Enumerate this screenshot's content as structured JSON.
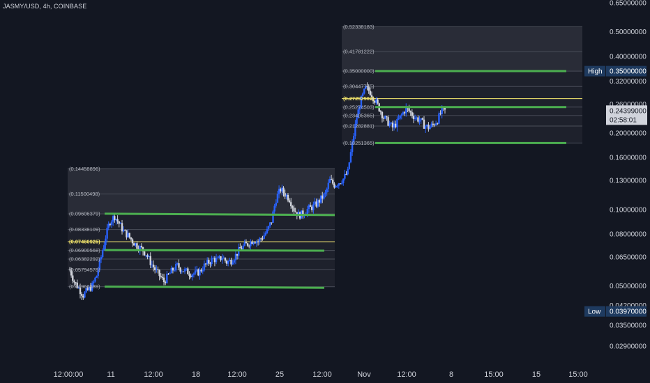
{
  "header": {
    "title": "JASMY/USD, 4h, COINBASE"
  },
  "price_scale": {
    "ticks": [
      "0.65000000",
      "0.50000000",
      "0.40000000",
      "0.32000000",
      "0.26000000",
      "0.20000000",
      "0.16000000",
      "0.13000000",
      "0.10000000",
      "0.08000000",
      "0.06500000",
      "0.05000000",
      "0.04200000",
      "0.03500000",
      "0.02900000"
    ],
    "high": {
      "label": "High",
      "value": "0.35000000"
    },
    "low": {
      "label": "Low",
      "value": "0.03970000"
    },
    "current": {
      "price": "0.24399000",
      "countdown": "02:58:01"
    }
  },
  "time_scale": {
    "labels": [
      "12:00:00",
      "11",
      "12:00",
      "18",
      "12:00",
      "25",
      "12:00",
      "Nov",
      "12:00",
      "8",
      "15:00",
      "15",
      "15:00"
    ]
  },
  "fib_left": {
    "levels": [
      "0.14458896",
      "0.11500498",
      "0.09606379",
      "0.08338109",
      "0.07460925",
      "0.06900568",
      "0.06382292",
      "0.05794578",
      "0.04966589"
    ],
    "highlight": "0.07460925"
  },
  "fib_right": {
    "levels": [
      "0.52338183",
      "0.41781222",
      "0.35000000",
      "0.30447755",
      "0.27292902",
      "0.25274503",
      "0.23405365",
      "0.21282881",
      "0.18251365"
    ],
    "highlight": "0.27292902"
  },
  "chart_data": {
    "type": "candlestick",
    "title": "JASMY/USD, 4h, COINBASE",
    "y_scale": "log",
    "ylim": [
      0.027,
      0.68
    ],
    "x_ticks": [
      "12:00:00",
      "11",
      "12:00",
      "18",
      "12:00",
      "25",
      "12:00",
      "Nov",
      "12:00",
      "8",
      "15:00",
      "15",
      "15:00"
    ],
    "high": 0.35,
    "low": 0.0397,
    "last_price": 0.24399,
    "closes_approx": [
      0.058,
      0.052,
      0.049,
      0.046,
      0.048,
      0.05,
      0.055,
      0.065,
      0.078,
      0.09,
      0.094,
      0.088,
      0.082,
      0.079,
      0.075,
      0.072,
      0.07,
      0.067,
      0.062,
      0.058,
      0.055,
      0.052,
      0.055,
      0.058,
      0.06,
      0.058,
      0.057,
      0.056,
      0.056,
      0.057,
      0.06,
      0.062,
      0.064,
      0.063,
      0.065,
      0.062,
      0.063,
      0.066,
      0.07,
      0.072,
      0.074,
      0.076,
      0.075,
      0.078,
      0.082,
      0.09,
      0.11,
      0.12,
      0.115,
      0.11,
      0.1,
      0.095,
      0.096,
      0.1,
      0.102,
      0.105,
      0.11,
      0.115,
      0.13,
      0.125,
      0.128,
      0.132,
      0.14,
      0.18,
      0.23,
      0.27,
      0.3,
      0.29,
      0.27,
      0.25,
      0.23,
      0.22,
      0.21,
      0.22,
      0.235,
      0.25,
      0.24,
      0.23,
      0.225,
      0.215,
      0.21,
      0.215,
      0.225,
      0.244
    ],
    "fib_left_levels": [
      0.14458896,
      0.11500498,
      0.09606379,
      0.08338109,
      0.07460925,
      0.06900568,
      0.06382292,
      0.05794578,
      0.04966589
    ],
    "fib_right_levels": [
      0.52338183,
      0.41781222,
      0.35,
      0.30447755,
      0.27292902,
      0.25274503,
      0.23405365,
      0.21282881,
      0.18251365
    ],
    "colors": {
      "up": "#2962ff",
      "down": "#d1d4dc",
      "green_line": "#4caf50",
      "highlight": "#f5e76b"
    }
  }
}
